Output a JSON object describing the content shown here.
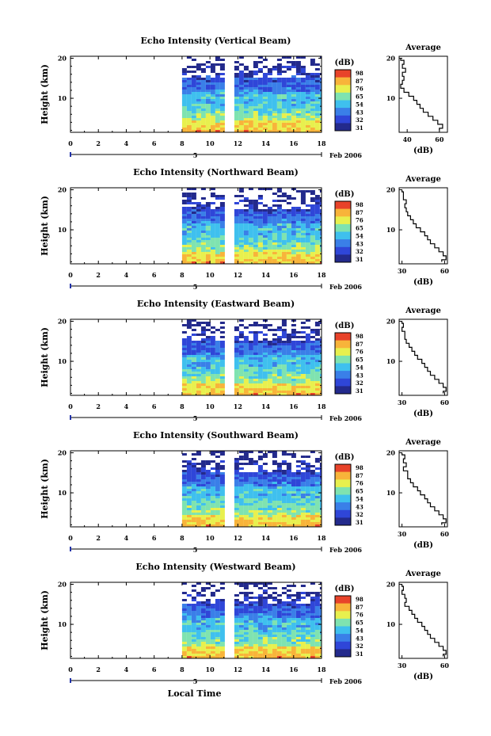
{
  "chart_data": {
    "type": "heatmap",
    "xlabel": "Local Time",
    "date_label": "Feb 2006",
    "day_label": "5",
    "ylabel": "Height (km)",
    "x_ticks": [
      "0",
      "2",
      "4",
      "6",
      "8",
      "10",
      "12",
      "14",
      "16",
      "18"
    ],
    "xlim": [
      0,
      18
    ],
    "y_ticks": [
      "10",
      "20"
    ],
    "ylim": [
      1.5,
      20.5
    ],
    "data_start_hour": 8.0,
    "data_gap_hours": [
      11.1,
      11.6
    ],
    "colorbar": {
      "unit": "(dB)",
      "tick_labels": [
        "31",
        "32",
        "43",
        "54",
        "65",
        "76",
        "87",
        "98"
      ],
      "colors": [
        "#232a8c",
        "#2f46d8",
        "#3a7fe8",
        "#3fc0ee",
        "#7fe3b0",
        "#e8f04e",
        "#f8b43a",
        "#e8432a"
      ]
    },
    "panels": [
      {
        "title": "Echo Intensity (Vertical Beam)",
        "colorbar_ticks": [
          "98",
          "87",
          "76",
          "65",
          "54",
          "43",
          "32",
          "31"
        ],
        "avg_title": "Average",
        "avg_xlabel": "(dB)",
        "avg_xticks": [
          "40",
          "60"
        ],
        "avg_xlim": [
          35,
          65
        ],
        "avg_profile": {
          "height_km": [
            20,
            19,
            18,
            17,
            16,
            15,
            14,
            13,
            12,
            11,
            10,
            9,
            8,
            7,
            6,
            5,
            4,
            3,
            2
          ],
          "intensity_db": [
            36,
            38,
            37,
            39,
            37,
            38,
            37,
            36,
            38,
            41,
            44,
            46,
            48,
            50,
            53,
            56,
            59,
            62,
            60
          ]
        }
      },
      {
        "title": "Echo Intensity (Northward Beam)",
        "colorbar_ticks": [
          "98",
          "87",
          "76",
          "65",
          "54",
          "43",
          "32",
          "31"
        ],
        "avg_title": "Average",
        "avg_xlabel": "(dB)",
        "avg_xticks": [
          "30",
          "60"
        ],
        "avg_xlim": [
          28,
          62
        ],
        "avg_profile": {
          "height_km": [
            20,
            19,
            18,
            17,
            16,
            15,
            14,
            13,
            12,
            11,
            10,
            9,
            8,
            7,
            6,
            5,
            4,
            3,
            2
          ],
          "intensity_db": [
            30,
            31,
            31,
            33,
            32,
            33,
            34,
            36,
            38,
            40,
            43,
            46,
            48,
            50,
            53,
            56,
            59,
            61,
            58
          ]
        }
      },
      {
        "title": "Echo Intensity (Eastward Beam)",
        "colorbar_ticks": [
          "98",
          "87",
          "76",
          "65",
          "54",
          "43",
          "32",
          "31"
        ],
        "avg_title": "Average",
        "avg_xlabel": "(dB)",
        "avg_xticks": [
          "30",
          "60"
        ],
        "avg_xlim": [
          28,
          62
        ],
        "avg_profile": {
          "height_km": [
            20,
            19,
            18,
            17,
            16,
            15,
            14,
            13,
            12,
            11,
            10,
            9,
            8,
            7,
            6,
            5,
            4,
            3,
            2
          ],
          "intensity_db": [
            30,
            31,
            30,
            32,
            32,
            33,
            35,
            37,
            39,
            41,
            44,
            46,
            48,
            50,
            53,
            56,
            59,
            61,
            59
          ]
        }
      },
      {
        "title": "Echo Intensity (Southward Beam)",
        "colorbar_ticks": [
          "98",
          "87",
          "76",
          "65",
          "54",
          "43",
          "32",
          "31"
        ],
        "avg_title": "Average",
        "avg_xlabel": "(dB)",
        "avg_xticks": [
          "30",
          "60"
        ],
        "avg_xlim": [
          28,
          62
        ],
        "avg_profile": {
          "height_km": [
            20,
            19,
            18,
            17,
            16,
            15,
            14,
            13,
            12,
            11,
            10,
            9,
            8,
            7,
            6,
            5,
            4,
            3,
            2
          ],
          "intensity_db": [
            30,
            32,
            31,
            33,
            31,
            34,
            34,
            36,
            38,
            41,
            43,
            46,
            48,
            50,
            53,
            56,
            59,
            61,
            58
          ]
        }
      },
      {
        "title": "Echo Intensity (Westward Beam)",
        "colorbar_ticks": [
          "98",
          "87",
          "76",
          "65",
          "54",
          "43",
          "32",
          "31"
        ],
        "avg_title": "Average",
        "avg_xlabel": "(dB)",
        "avg_xticks": [
          "30",
          "60"
        ],
        "avg_xlim": [
          28,
          62
        ],
        "avg_profile": {
          "height_km": [
            20,
            19,
            18,
            17,
            16,
            15,
            14,
            13,
            12,
            11,
            10,
            9,
            8,
            7,
            6,
            5,
            4,
            3,
            2
          ],
          "intensity_db": [
            30,
            31,
            30,
            32,
            33,
            32,
            35,
            37,
            39,
            41,
            44,
            46,
            48,
            50,
            53,
            56,
            59,
            61,
            59
          ]
        }
      }
    ]
  }
}
